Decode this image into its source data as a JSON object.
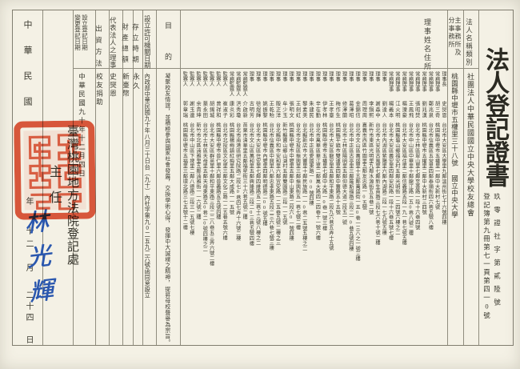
{
  "certificate": {
    "title": "法人登記證書",
    "doc_no_line": "玖零證社字第貳陸號",
    "book_no_line": "登記簿第九冊第七一頁第四一0號"
  },
  "columns": {
    "name_type": {
      "header": "法人名稱類別",
      "content": "社團法人中華民國國立中央大學校友總會"
    },
    "offices": {
      "header_line1": "主事務所及",
      "header_line2": "分事務所",
      "content": "桃園縣中壢市五權里三十八號 國立中央大學"
    },
    "directors_header": "理事姓名住所",
    "purpose": {
      "header": "目的",
      "content": "凝聚校友情誼，並積極參與國家社會發展，交換學術心得，發揮中大誠樸之精神，提昇母校聲譽為宗旨。"
    },
    "permit": {
      "header": "設立許可機關日期",
      "content": "內政部中華民國九十年八月三十日台（九十）內社字第九0二五九二六號函同意設立"
    },
    "duration": {
      "header": "存立時期",
      "content": "永久"
    },
    "assets": {
      "header": "財產總額",
      "content": "新臺幣"
    },
    "representative": {
      "header": "代表法人之理事",
      "content": "史爕恩"
    },
    "funding": {
      "header": "出資方法",
      "content": "校友捐助"
    },
    "registration_date": {
      "header_line1": "設立登記日期",
      "header_line2": "變更登記日期",
      "content": "中華民國九十年十二月四日"
    }
  },
  "directors": [
    {
      "role": "理事長",
      "name": "史爕恩",
      "address": "台北市大安區大學里九鄰溫州街七十六號四樓"
    },
    {
      "role": "常務理事",
      "name": "胡三奇",
      "address": "桃園縣中壢市五權里一鄰中大新村七號"
    },
    {
      "role": "常務理事",
      "name": "鄭兆泉",
      "address": "台北市信義區五常里四鄰泰順街四六巷五號八樓"
    },
    {
      "role": "常務理事",
      "name": "劉兆漢",
      "address": "桃園縣中壢市五權里二鄰中大新村三四號"
    },
    {
      "role": "常務理事",
      "name": "張昭焚",
      "address": "台北市士林區翠山里七鄰至善路一段十六巷四號"
    },
    {
      "role": "常務理事",
      "name": "王鳳飛",
      "address": "台北市中山區中華里十鄰龍江路一五0巷八號二樓"
    },
    {
      "role": "常務理事",
      "name": "楊溧豪",
      "address": "台北市大安區福住里二鄰信義路五段一九一巷七號五樓"
    },
    {
      "role": "常務理事",
      "name": "江火明",
      "address": "桃園縣龜山鄉福安村五鄰光明街一二四號六樓之二"
    },
    {
      "role": "常務理事",
      "name": "楊義本",
      "address": "台北市大安區義安里四鄰安和路一段十六巷五號七樓"
    },
    {
      "role": "理事",
      "name": "劉達人",
      "address": "台北市內湖區紫陽里六鄰內湖路二段一七九號五樓"
    },
    {
      "role": "理事",
      "name": "謝森中",
      "address": "台北市大安區古風里七鄰新生南路三段七六巷十號二樓"
    },
    {
      "role": "理事",
      "name": "李鍋熙",
      "address": "新竹市東區光明里九鄰水源街五五巷二號"
    },
    {
      "role": "理事",
      "name": "周理周",
      "address": "嘉義市西區竹圍里五鄰友忠路一0五號"
    },
    {
      "role": "理事",
      "name": "金錦信",
      "address": "台北市文山區萬盛里十五鄰萬盛街一五0巷一三八之一號三樓"
    },
    {
      "role": "理事",
      "name": "葛澤昭",
      "address": "台北市中正區古亭里三鄰羅斯福路三段二一0巷五號四樓"
    },
    {
      "role": "理事",
      "name": "修澤蘭",
      "address": "台北市士林區陽明里五鄰仰德大道二段五一號"
    },
    {
      "role": "理事",
      "name": "梅作生",
      "address": "桃園縣平鎮市雙連里四鄰中豐路五十五號"
    },
    {
      "role": "理事",
      "name": "王孝臺",
      "address": "台北市大安區龍安里五鄰和平東路二段九六巷五弄十五號"
    },
    {
      "role": "理事",
      "name": "伊孝林",
      "address": "桃園縣中壢市五權里七鄰中大路一0巷一號三樓"
    },
    {
      "role": "理事",
      "name": "辛在勤",
      "address": "台北市萬華區華江里二鄰萬大路四二四巷十一號六樓"
    },
    {
      "role": "理事",
      "name": "朱建民",
      "address": "台北市中正區愛國東路一00號四樓"
    },
    {
      "role": "理事",
      "name": "黎素美",
      "address": "台北縣新店市大豐里十鄰民族路一一0巷二五號五樓之二"
    },
    {
      "role": "理事",
      "name": "王劍虹",
      "address": "台北市北投區振興里三鄰振興街五一巷七號二樓"
    },
    {
      "role": "理事",
      "name": "張明文",
      "address": "桃園縣中壢市中壢里五鄰中山東路二段六0一號四樓"
    },
    {
      "role": "理事",
      "name": "牟少玉",
      "address": "新竹縣寶山鄉山湖村五鄰雙園路二段一一五號"
    },
    {
      "role": "理事",
      "name": "殷正洋",
      "address": "台北縣中和市安和里六鄰宜安路一二五巷五號二樓之三"
    },
    {
      "role": "理事",
      "name": "王乾貽",
      "address": "台北市信義區中興里八鄰忠孝東路五段二三六巷七號三樓"
    },
    {
      "role": "理事",
      "name": "姚振黎",
      "address": "桃園縣中壢市內壢里四鄰明德路二00號五樓"
    },
    {
      "role": "理事",
      "name": "徐煜輝",
      "address": "台北市大安區住安里七鄰四維路五二巷十三號八樓之二"
    },
    {
      "role": "理事",
      "name": "古明芳",
      "address": "台北市文山區萬和里五鄰興隆路二段二0三巷五號四樓"
    },
    {
      "role": "常務監察人",
      "name": "介啟新",
      "address": "苗栗市清華里五鄰福星街三十六巷五號二樓"
    },
    {
      "role": "常務監察人",
      "name": "洪秀瓊",
      "address": "台北市南港區研究院路二段七0巷四七弄十六號二樓"
    },
    {
      "role": "常務監察人",
      "name": "康炎彩",
      "address": "桃園縣楊梅鎮紅梅里五鄰大成路一一五號"
    },
    {
      "role": "監察人",
      "name": "崔淑子",
      "address": "台北市北投區文化里三鄰文化三路一二五巷五號六樓"
    },
    {
      "role": "監察人",
      "name": "曾祥和",
      "address": "桃園縣中壢市普仁里六鄰普義路五五號四樓"
    },
    {
      "role": "監察人",
      "name": "胡錫城",
      "address": "台北市大安區群英里十鄰和平東路三段二二八巷五三弄六號二樓"
    },
    {
      "role": "監察人",
      "name": "葉永田",
      "address": "台北市士林區天母里五鄰天母東路五0巷二0號四樓之二"
    },
    {
      "role": "監察人",
      "name": "余貴坤",
      "address": "新竹市北區湳雅里五鄰湳雅街一一六號二樓"
    },
    {
      "role": "監察人",
      "name": "謝玉連",
      "address": "台北市中山區下埤里二鄰八德路二段三一五號七樓"
    },
    {
      "role": "監察人",
      "name": "郭章瑞",
      "address": "桃園縣中壢市五福里三鄰環北路三七五號十二樓"
    }
  ],
  "issue_date": {
    "era": "中華民國",
    "year_char": "年",
    "month": "十二",
    "month_char": "月",
    "day": "二十四",
    "day_char": "日"
  },
  "registry": {
    "office": "臺灣桃園地方法院登記處",
    "official_title": "主任",
    "signature": "林光輝"
  },
  "colors": {
    "seal_red": "#dd4526",
    "signature_blue": "#2a57ae",
    "paper": "#f4f1e5"
  }
}
